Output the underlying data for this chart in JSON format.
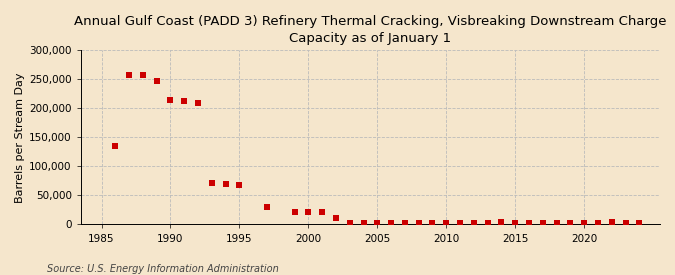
{
  "title": "Annual Gulf Coast (PADD 3) Refinery Thermal Cracking, Visbreaking Downstream Charge\nCapacity as of January 1",
  "ylabel": "Barrels per Stream Day",
  "source": "Source: U.S. Energy Information Administration",
  "background_color": "#f5e6cc",
  "plot_bg_color": "#f5e6cc",
  "years": [
    1986,
    1987,
    1988,
    1989,
    1990,
    1991,
    1992,
    1993,
    1994,
    1995,
    1997,
    1999,
    2000,
    2001,
    2002,
    2003,
    2004,
    2005,
    2006,
    2007,
    2008,
    2009,
    2010,
    2011,
    2012,
    2013,
    2014,
    2015,
    2016,
    2017,
    2018,
    2019,
    2020,
    2021,
    2022,
    2023,
    2024
  ],
  "values": [
    135000,
    258000,
    258000,
    248000,
    215000,
    212000,
    210000,
    72000,
    70000,
    68000,
    30000,
    22000,
    22000,
    22000,
    12000,
    2500,
    2500,
    2500,
    2500,
    2500,
    2500,
    2500,
    2500,
    2500,
    2500,
    2500,
    5000,
    2500,
    2500,
    2500,
    2500,
    2500,
    2500,
    2500,
    5000,
    2500,
    2500
  ],
  "marker_color": "#cc0000",
  "marker_size": 5,
  "xlim": [
    1983.5,
    2025.5
  ],
  "ylim": [
    0,
    300000
  ],
  "yticks": [
    0,
    50000,
    100000,
    150000,
    200000,
    250000,
    300000
  ],
  "xticks": [
    1985,
    1990,
    1995,
    2000,
    2005,
    2010,
    2015,
    2020
  ],
  "grid_color": "#bbbbbb",
  "title_fontsize": 9.5,
  "axis_fontsize": 8,
  "tick_fontsize": 7.5,
  "source_fontsize": 7
}
